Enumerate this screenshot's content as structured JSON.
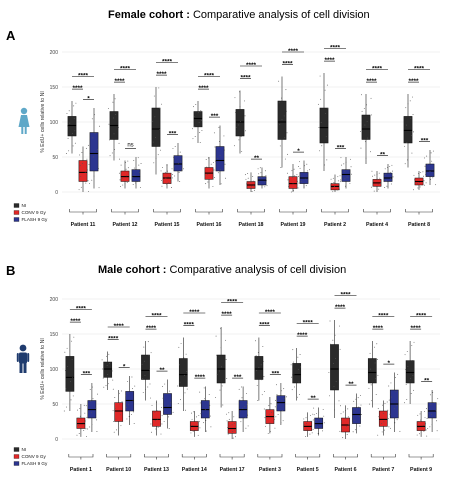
{
  "colors": {
    "NI": "#2b2b2b",
    "CONV 9 Gy": "#e02828",
    "FLASH 9 Gy": "#2c3590",
    "person_female": "#5fa8c8",
    "person_male": "#1f3b6e"
  },
  "icons": {
    "female_panel": "female-person-icon",
    "male_panel": "male-person-icon"
  },
  "panels": [
    {
      "letter": "A",
      "title_bold": "Female cohort :",
      "title_rest": " Comparative analysis of cell division"
    },
    {
      "letter": "B",
      "title_bold": "Male cohort :",
      "title_rest": " Comparative analysis of cell division"
    }
  ],
  "chart_data": [
    {
      "type": "boxplot",
      "ylabel": "% EdU+ cells relative to NI",
      "ylim": [
        0,
        200
      ],
      "yticks": [
        0,
        50,
        100,
        150,
        200
      ],
      "grid": true,
      "legend": [
        "NI",
        "CONV 9 Gy",
        "FLASH 9 Gy"
      ],
      "legend_position": "bottom-left",
      "groups": [
        {
          "name": "Patient 11",
          "boxes": [
            {
              "q1": 80,
              "med": 95,
              "q3": 108,
              "lo": 55,
              "hi": 130
            },
            {
              "q1": 15,
              "med": 28,
              "q3": 45,
              "lo": 0,
              "hi": 65
            },
            {
              "q1": 30,
              "med": 55,
              "q3": 85,
              "lo": 5,
              "hi": 120
            }
          ],
          "sig": [
            {
              "a": 0,
              "b": 2,
              "label": "****"
            },
            {
              "a": 0,
              "b": 1,
              "label": "****"
            },
            {
              "a": 1,
              "b": 2,
              "label": "*"
            }
          ]
        },
        {
          "name": "Patient 12",
          "boxes": [
            {
              "q1": 75,
              "med": 95,
              "q3": 115,
              "lo": 45,
              "hi": 140
            },
            {
              "q1": 15,
              "med": 22,
              "q3": 30,
              "lo": 5,
              "hi": 45
            },
            {
              "q1": 15,
              "med": 22,
              "q3": 32,
              "lo": 5,
              "hi": 50
            }
          ],
          "sig": [
            {
              "a": 0,
              "b": 2,
              "label": "****"
            },
            {
              "a": 0,
              "b": 1,
              "label": "****"
            },
            {
              "a": 1,
              "b": 2,
              "label": "ns"
            }
          ]
        },
        {
          "name": "Patient 15",
          "boxes": [
            {
              "q1": 65,
              "med": 90,
              "q3": 120,
              "lo": 25,
              "hi": 150
            },
            {
              "q1": 12,
              "med": 20,
              "q3": 27,
              "lo": 5,
              "hi": 40
            },
            {
              "q1": 30,
              "med": 40,
              "q3": 52,
              "lo": 15,
              "hi": 70
            }
          ],
          "sig": [
            {
              "a": 0,
              "b": 2,
              "label": "****"
            },
            {
              "a": 0,
              "b": 1,
              "label": "****"
            },
            {
              "a": 1,
              "b": 2,
              "label": "***"
            }
          ]
        },
        {
          "name": "Patient 16",
          "boxes": [
            {
              "q1": 93,
              "med": 105,
              "q3": 115,
              "lo": 70,
              "hi": 130
            },
            {
              "q1": 18,
              "med": 27,
              "q3": 35,
              "lo": 5,
              "hi": 50
            },
            {
              "q1": 30,
              "med": 45,
              "q3": 65,
              "lo": 10,
              "hi": 95
            }
          ],
          "sig": [
            {
              "a": 0,
              "b": 2,
              "label": "****"
            },
            {
              "a": 0,
              "b": 1,
              "label": "****"
            },
            {
              "a": 1,
              "b": 2,
              "label": "***"
            }
          ]
        },
        {
          "name": "Patient 18",
          "boxes": [
            {
              "q1": 80,
              "med": 100,
              "q3": 118,
              "lo": 55,
              "hi": 145
            },
            {
              "q1": 5,
              "med": 10,
              "q3": 15,
              "lo": 0,
              "hi": 28
            },
            {
              "q1": 10,
              "med": 17,
              "q3": 22,
              "lo": 5,
              "hi": 35
            }
          ],
          "sig": [
            {
              "a": 0,
              "b": 2,
              "label": "****"
            },
            {
              "a": 0,
              "b": 1,
              "label": "****"
            },
            {
              "a": 1,
              "b": 2,
              "label": "**"
            }
          ]
        },
        {
          "name": "Patient 19",
          "boxes": [
            {
              "q1": 75,
              "med": 100,
              "q3": 130,
              "lo": 35,
              "hi": 165
            },
            {
              "q1": 5,
              "med": 12,
              "q3": 22,
              "lo": 0,
              "hi": 40
            },
            {
              "q1": 12,
              "med": 20,
              "q3": 28,
              "lo": 5,
              "hi": 45
            }
          ],
          "sig": [
            {
              "a": 0,
              "b": 2,
              "label": "****"
            },
            {
              "a": 0,
              "b": 1,
              "label": "****"
            },
            {
              "a": 1,
              "b": 2,
              "label": "*"
            }
          ]
        },
        {
          "name": "Patient 2",
          "boxes": [
            {
              "q1": 70,
              "med": 92,
              "q3": 120,
              "lo": 30,
              "hi": 170
            },
            {
              "q1": 3,
              "med": 8,
              "q3": 12,
              "lo": 0,
              "hi": 25
            },
            {
              "q1": 15,
              "med": 25,
              "q3": 32,
              "lo": 5,
              "hi": 50
            }
          ],
          "sig": [
            {
              "a": 0,
              "b": 2,
              "label": "****"
            },
            {
              "a": 0,
              "b": 1,
              "label": "****"
            },
            {
              "a": 1,
              "b": 2,
              "label": "***"
            }
          ]
        },
        {
          "name": "Patient 4",
          "boxes": [
            {
              "q1": 75,
              "med": 90,
              "q3": 110,
              "lo": 40,
              "hi": 140
            },
            {
              "q1": 8,
              "med": 13,
              "q3": 18,
              "lo": 0,
              "hi": 30
            },
            {
              "q1": 15,
              "med": 20,
              "q3": 27,
              "lo": 5,
              "hi": 40
            }
          ],
          "sig": [
            {
              "a": 0,
              "b": 2,
              "label": "****"
            },
            {
              "a": 0,
              "b": 1,
              "label": "****"
            },
            {
              "a": 1,
              "b": 2,
              "label": "**"
            }
          ]
        },
        {
          "name": "Patient 8",
          "boxes": [
            {
              "q1": 70,
              "med": 88,
              "q3": 108,
              "lo": 35,
              "hi": 140
            },
            {
              "q1": 10,
              "med": 15,
              "q3": 20,
              "lo": 3,
              "hi": 30
            },
            {
              "q1": 22,
              "med": 30,
              "q3": 40,
              "lo": 10,
              "hi": 60
            }
          ],
          "sig": [
            {
              "a": 0,
              "b": 2,
              "label": "****"
            },
            {
              "a": 0,
              "b": 1,
              "label": "****"
            },
            {
              "a": 1,
              "b": 2,
              "label": "***"
            }
          ]
        }
      ]
    },
    {
      "type": "boxplot",
      "ylabel": "% EdU+ cells relative to NI",
      "ylim": [
        0,
        200
      ],
      "yticks": [
        0,
        50,
        100,
        150,
        200
      ],
      "grid": true,
      "legend": [
        "NI",
        "CONV 9 Gy",
        "FLASH 9 Gy"
      ],
      "legend_position": "bottom-left",
      "groups": [
        {
          "name": "Patient 1",
          "boxes": [
            {
              "q1": 68,
              "med": 88,
              "q3": 118,
              "lo": 40,
              "hi": 150
            },
            {
              "q1": 15,
              "med": 22,
              "q3": 30,
              "lo": 3,
              "hi": 50
            },
            {
              "q1": 30,
              "med": 42,
              "q3": 55,
              "lo": 10,
              "hi": 80
            }
          ],
          "sig": [
            {
              "a": 0,
              "b": 2,
              "label": "****"
            },
            {
              "a": 0,
              "b": 1,
              "label": "****"
            },
            {
              "a": 1,
              "b": 2,
              "label": "***"
            }
          ]
        },
        {
          "name": "Patient 10",
          "boxes": [
            {
              "q1": 88,
              "med": 100,
              "q3": 110,
              "lo": 70,
              "hi": 125
            },
            {
              "q1": 25,
              "med": 40,
              "q3": 52,
              "lo": 5,
              "hi": 70
            },
            {
              "q1": 40,
              "med": 55,
              "q3": 68,
              "lo": 20,
              "hi": 90
            }
          ],
          "sig": [
            {
              "a": 0,
              "b": 2,
              "label": "****"
            },
            {
              "a": 0,
              "b": 1,
              "label": "****"
            },
            {
              "a": 1,
              "b": 2,
              "label": "*"
            }
          ]
        },
        {
          "name": "Patient 13",
          "boxes": [
            {
              "q1": 85,
              "med": 98,
              "q3": 120,
              "lo": 55,
              "hi": 140
            },
            {
              "q1": 18,
              "med": 28,
              "q3": 40,
              "lo": 5,
              "hi": 55
            },
            {
              "q1": 35,
              "med": 45,
              "q3": 65,
              "lo": 15,
              "hi": 85
            }
          ],
          "sig": [
            {
              "a": 0,
              "b": 2,
              "label": "****"
            },
            {
              "a": 0,
              "b": 1,
              "label": "****"
            },
            {
              "a": 1,
              "b": 2,
              "label": "**"
            }
          ]
        },
        {
          "name": "Patient 14",
          "boxes": [
            {
              "q1": 75,
              "med": 92,
              "q3": 115,
              "lo": 40,
              "hi": 145
            },
            {
              "q1": 12,
              "med": 18,
              "q3": 25,
              "lo": 3,
              "hi": 40
            },
            {
              "q1": 30,
              "med": 42,
              "q3": 55,
              "lo": 10,
              "hi": 75
            }
          ],
          "sig": [
            {
              "a": 0,
              "b": 2,
              "label": "****"
            },
            {
              "a": 0,
              "b": 1,
              "label": "****"
            },
            {
              "a": 1,
              "b": 2,
              "label": "****"
            }
          ]
        },
        {
          "name": "Patient 17",
          "boxes": [
            {
              "q1": 80,
              "med": 100,
              "q3": 120,
              "lo": 45,
              "hi": 160
            },
            {
              "q1": 8,
              "med": 15,
              "q3": 25,
              "lo": 0,
              "hi": 40
            },
            {
              "q1": 30,
              "med": 42,
              "q3": 55,
              "lo": 10,
              "hi": 75
            }
          ],
          "sig": [
            {
              "a": 0,
              "b": 2,
              "label": "****"
            },
            {
              "a": 0,
              "b": 1,
              "label": "****"
            },
            {
              "a": 1,
              "b": 2,
              "label": "***"
            }
          ]
        },
        {
          "name": "Patient 3",
          "boxes": [
            {
              "q1": 85,
              "med": 100,
              "q3": 118,
              "lo": 55,
              "hi": 145
            },
            {
              "q1": 22,
              "med": 32,
              "q3": 42,
              "lo": 8,
              "hi": 60
            },
            {
              "q1": 40,
              "med": 52,
              "q3": 62,
              "lo": 20,
              "hi": 80
            }
          ],
          "sig": [
            {
              "a": 0,
              "b": 2,
              "label": "****"
            },
            {
              "a": 0,
              "b": 1,
              "label": "****"
            },
            {
              "a": 1,
              "b": 2,
              "label": "***"
            }
          ]
        },
        {
          "name": "Patient 5",
          "boxes": [
            {
              "q1": 80,
              "med": 92,
              "q3": 108,
              "lo": 55,
              "hi": 130
            },
            {
              "q1": 12,
              "med": 18,
              "q3": 25,
              "lo": 3,
              "hi": 38
            },
            {
              "q1": 15,
              "med": 22,
              "q3": 30,
              "lo": 5,
              "hi": 45
            }
          ],
          "sig": [
            {
              "a": 0,
              "b": 2,
              "label": "****"
            },
            {
              "a": 0,
              "b": 1,
              "label": "****"
            },
            {
              "a": 1,
              "b": 2,
              "label": "**"
            }
          ]
        },
        {
          "name": "Patient 6",
          "boxes": [
            {
              "q1": 70,
              "med": 100,
              "q3": 135,
              "lo": 30,
              "hi": 170
            },
            {
              "q1": 10,
              "med": 20,
              "q3": 30,
              "lo": 0,
              "hi": 48
            },
            {
              "q1": 22,
              "med": 35,
              "q3": 45,
              "lo": 8,
              "hi": 65
            }
          ],
          "sig": [
            {
              "a": 0,
              "b": 2,
              "label": "****"
            },
            {
              "a": 0,
              "b": 1,
              "label": "****"
            },
            {
              "a": 1,
              "b": 2,
              "label": "**"
            }
          ]
        },
        {
          "name": "Patient 7",
          "boxes": [
            {
              "q1": 80,
              "med": 95,
              "q3": 115,
              "lo": 45,
              "hi": 140
            },
            {
              "q1": 18,
              "med": 28,
              "q3": 40,
              "lo": 5,
              "hi": 55
            },
            {
              "q1": 30,
              "med": 50,
              "q3": 70,
              "lo": 10,
              "hi": 95
            }
          ],
          "sig": [
            {
              "a": 0,
              "b": 2,
              "label": "****"
            },
            {
              "a": 0,
              "b": 1,
              "label": "****"
            },
            {
              "a": 1,
              "b": 2,
              "label": "*"
            }
          ]
        },
        {
          "name": "Patient 9",
          "boxes": [
            {
              "q1": 80,
              "med": 95,
              "q3": 112,
              "lo": 50,
              "hi": 140
            },
            {
              "q1": 12,
              "med": 18,
              "q3": 25,
              "lo": 3,
              "hi": 40
            },
            {
              "q1": 30,
              "med": 40,
              "q3": 52,
              "lo": 10,
              "hi": 70
            }
          ],
          "sig": [
            {
              "a": 0,
              "b": 2,
              "label": "****"
            },
            {
              "a": 0,
              "b": 1,
              "label": "****"
            },
            {
              "a": 1,
              "b": 2,
              "label": "**"
            }
          ]
        }
      ]
    }
  ]
}
